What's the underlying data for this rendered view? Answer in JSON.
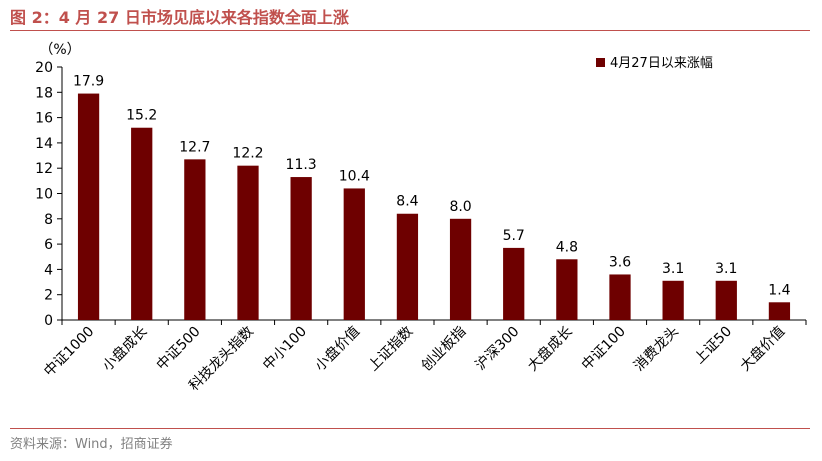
{
  "figure": {
    "title": "图 2：4 月 27 日市场见底以来各指数全面上涨",
    "source": "资料来源：Wind，招商证券"
  },
  "colors": {
    "bar": "#6e0000",
    "accent": "#c0504d",
    "source_text": "#808080"
  },
  "chart_data": {
    "type": "bar",
    "title": "",
    "xlabel": "",
    "ylabel": "（%）",
    "ylim": [
      0,
      20
    ],
    "yticks": [
      0,
      2,
      4,
      6,
      8,
      10,
      12,
      14,
      16,
      18,
      20
    ],
    "categories": [
      "中证1000",
      "小盘成长",
      "中证500",
      "科技龙头指数",
      "中小100",
      "小盘价值",
      "上证指数",
      "创业板指",
      "沪深300",
      "大盘成长",
      "中证100",
      "消费龙头",
      "上证50",
      "大盘价值"
    ],
    "series": [
      {
        "name": "4月27日以来涨幅",
        "values": [
          17.9,
          15.2,
          12.7,
          12.2,
          11.3,
          10.4,
          8.4,
          8.0,
          5.7,
          4.8,
          3.6,
          3.1,
          3.1,
          1.4
        ]
      }
    ],
    "data_labels": [
      "17.9",
      "15.2",
      "12.7",
      "12.2",
      "11.3",
      "10.4",
      "8.4",
      "8.0",
      "5.7",
      "4.8",
      "3.6",
      "3.1",
      "3.1",
      "1.4"
    ],
    "legend_position": "top-right",
    "grid": false
  }
}
